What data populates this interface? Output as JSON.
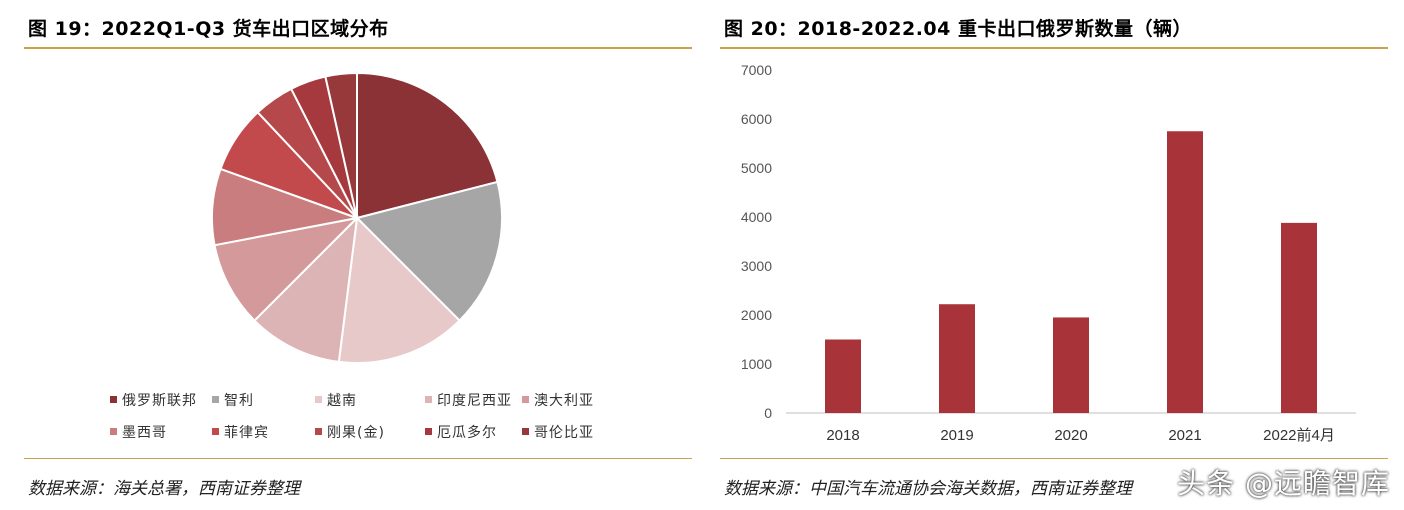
{
  "left_panel": {
    "title": "图 19：2022Q1-Q3 货车出口区域分布",
    "source": "数据来源：海关总署，西南证券整理"
  },
  "right_panel": {
    "title": "图 20：2018-2022.04 重卡出口俄罗斯数量（辆）",
    "source": "数据来源：中国汽车流通协会海关数据，西南证券整理"
  },
  "watermark": "头条 @远瞻智库",
  "colors": {
    "rule": "#c9a24d",
    "bar": "#a8343a",
    "axis": "#bfbfbf"
  },
  "chart_data": [
    {
      "type": "pie",
      "title": "",
      "legend_position": "bottom",
      "slices": [
        {
          "label": "俄罗斯联邦",
          "value": 21.0,
          "color": "#8b3236"
        },
        {
          "label": "智利",
          "value": 16.5,
          "color": "#a6a6a6"
        },
        {
          "label": "越南",
          "value": 14.5,
          "color": "#e8c9ca"
        },
        {
          "label": "印度尼西亚",
          "value": 10.5,
          "color": "#dcb4b5"
        },
        {
          "label": "澳大利亚",
          "value": 9.5,
          "color": "#d49a9b"
        },
        {
          "label": "墨西哥",
          "value": 8.5,
          "color": "#c97d7e"
        },
        {
          "label": "菲律宾",
          "value": 7.5,
          "color": "#c24a4c"
        },
        {
          "label": "刚果(金)",
          "value": 4.5,
          "color": "#b5484a"
        },
        {
          "label": "厄瓜多尔",
          "value": 4.0,
          "color": "#a6393d"
        },
        {
          "label": "哥伦比亚",
          "value": 3.5,
          "color": "#97393b"
        }
      ]
    },
    {
      "type": "bar",
      "title": "",
      "categories": [
        "2018",
        "2019",
        "2020",
        "2021",
        "2022前4月"
      ],
      "values": [
        1500,
        2220,
        1950,
        5750,
        3880
      ],
      "ylim": [
        0,
        7000
      ],
      "yticks": [
        "0",
        "1000",
        "2000",
        "3000",
        "4000",
        "5000",
        "6000",
        "7000"
      ],
      "grid": false,
      "xlabel": "",
      "ylabel": ""
    }
  ]
}
